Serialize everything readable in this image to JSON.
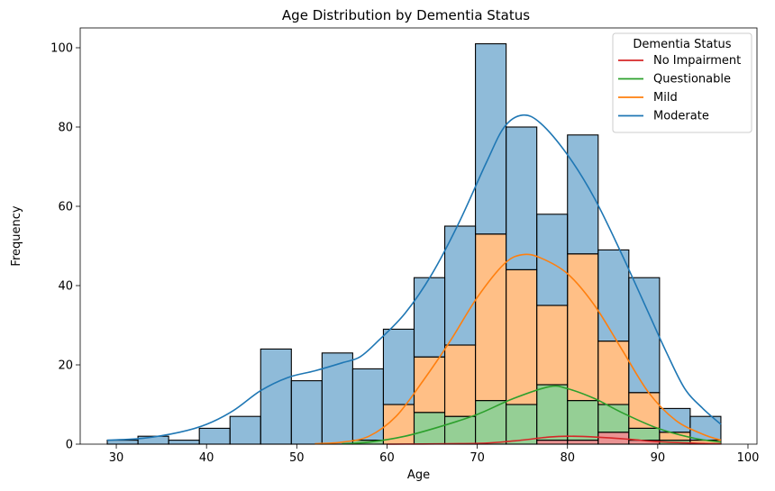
{
  "chart_data": {
    "type": "bar",
    "subtype": "stacked-histogram-with-kde",
    "title": "Age Distribution by Dementia Status",
    "xlabel": "Age",
    "ylabel": "Frequency",
    "xlim": [
      26,
      101
    ],
    "ylim": [
      0,
      105
    ],
    "xticks": [
      30,
      40,
      50,
      60,
      70,
      80,
      90,
      100
    ],
    "yticks": [
      0,
      20,
      40,
      60,
      80,
      100
    ],
    "grid": false,
    "legend": {
      "title": "Dementia Status",
      "placement": "top-right",
      "entries": [
        "No Impairment",
        "Questionable",
        "Mild",
        "Moderate"
      ]
    },
    "bin_edges": [
      29,
      32.4,
      35.8,
      39.2,
      42.6,
      46,
      49.4,
      52.8,
      56.2,
      59.6,
      63,
      66.4,
      69.8,
      73.2,
      76.6,
      80,
      83.4,
      86.8,
      90.2,
      93.6,
      97
    ],
    "series": [
      {
        "name": "No Impairment",
        "color": "#d62728",
        "counts": [
          0,
          0,
          0,
          0,
          0,
          0,
          0,
          0,
          0,
          0,
          0,
          0,
          0,
          0,
          1,
          1,
          3,
          1,
          0,
          0
        ],
        "kde": [
          [
            60,
            0
          ],
          [
            70,
            0.2
          ],
          [
            74,
            0.8
          ],
          [
            78,
            1.8
          ],
          [
            80,
            2
          ],
          [
            83,
            1.8
          ],
          [
            87,
            1.2
          ],
          [
            90,
            0.6
          ],
          [
            95,
            0.2
          ],
          [
            97,
            0.1
          ]
        ]
      },
      {
        "name": "Questionable",
        "color": "#2ca02c",
        "counts": [
          0,
          0,
          0,
          0,
          0,
          0,
          0,
          0,
          1,
          0,
          8,
          7,
          11,
          10,
          14,
          10,
          7,
          3,
          1,
          0
        ],
        "kde": [
          [
            55,
            0.1
          ],
          [
            58,
            0.5
          ],
          [
            62,
            2
          ],
          [
            66,
            4.5
          ],
          [
            70,
            7.5
          ],
          [
            74,
            11.5
          ],
          [
            78,
            14.5
          ],
          [
            80,
            14
          ],
          [
            83,
            11.5
          ],
          [
            86,
            8
          ],
          [
            90,
            4
          ],
          [
            94,
            1.5
          ],
          [
            97,
            0.5
          ]
        ]
      },
      {
        "name": "Mild",
        "color": "#ff7f0e",
        "counts": [
          0,
          0,
          0,
          0,
          0,
          0,
          0,
          0,
          0,
          10,
          14,
          18,
          42,
          34,
          20,
          37,
          16,
          9,
          2,
          1
        ],
        "kde": [
          [
            52,
            0.1
          ],
          [
            55,
            0.5
          ],
          [
            58,
            2
          ],
          [
            61,
            7
          ],
          [
            64,
            16
          ],
          [
            67,
            26
          ],
          [
            70,
            37
          ],
          [
            73,
            45.5
          ],
          [
            75,
            47.8
          ],
          [
            77,
            47
          ],
          [
            80,
            43
          ],
          [
            83,
            35
          ],
          [
            86,
            24
          ],
          [
            89,
            13
          ],
          [
            92,
            6
          ],
          [
            95,
            2.5
          ],
          [
            97,
            1
          ]
        ]
      },
      {
        "name": "Moderate",
        "color": "#1f77b4",
        "counts": [
          1,
          2,
          1,
          4,
          7,
          24,
          16,
          23,
          18,
          19,
          20,
          30,
          48,
          36,
          23,
          30,
          23,
          29,
          6,
          6
        ],
        "kde": [
          [
            29,
            1
          ],
          [
            33,
            1.5
          ],
          [
            37,
            3
          ],
          [
            40,
            5
          ],
          [
            43,
            8.5
          ],
          [
            46,
            13.5
          ],
          [
            49,
            16.8
          ],
          [
            52,
            18.5
          ],
          [
            55,
            20.5
          ],
          [
            57,
            22
          ],
          [
            59,
            26
          ],
          [
            62,
            33
          ],
          [
            65,
            43
          ],
          [
            68,
            56
          ],
          [
            71,
            71
          ],
          [
            73,
            80
          ],
          [
            75,
            83
          ],
          [
            77,
            81
          ],
          [
            80,
            73
          ],
          [
            83,
            62
          ],
          [
            86,
            48
          ],
          [
            89,
            33
          ],
          [
            91,
            23
          ],
          [
            93,
            14
          ],
          [
            95,
            9
          ],
          [
            97,
            5
          ]
        ]
      }
    ]
  }
}
